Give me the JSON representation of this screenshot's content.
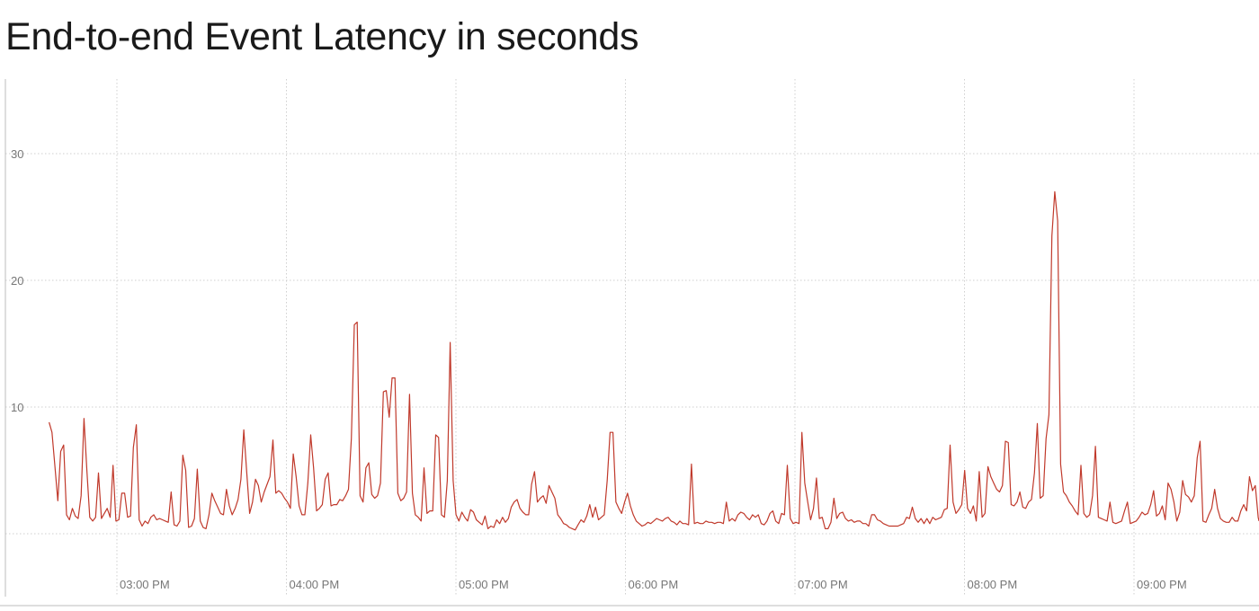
{
  "chart_data": {
    "type": "line",
    "title": "End-to-end Event Latency in seconds",
    "xlabel": "",
    "ylabel": "",
    "y_ticks": [
      10,
      20,
      30
    ],
    "x_ticks": [
      "03:00 PM",
      "04:00 PM",
      "05:00 PM",
      "06:00 PM",
      "07:00 PM",
      "08:00 PM",
      "09:00 PM"
    ],
    "ylim": [
      -5,
      36
    ],
    "x_range_hours_pm": [
      2.6,
      9.75
    ],
    "grid": true,
    "color": "#c0392b",
    "series": [
      {
        "values": [
          8.8,
          8.0,
          5.3,
          2.6,
          6.5,
          7.0,
          1.5,
          1.1,
          2.0,
          1.4,
          1.2,
          3.0,
          9.1,
          5.0,
          1.3,
          1.0,
          1.3,
          4.8,
          1.2,
          1.6,
          2.0,
          1.3,
          5.4,
          1.0,
          1.1,
          3.2,
          3.2,
          1.3,
          1.4,
          6.8,
          8.6,
          1.1,
          0.6,
          1.0,
          0.8,
          1.3,
          1.5,
          1.1,
          1.2,
          1.1,
          1.0,
          0.9,
          3.3,
          0.7,
          0.6,
          1.0,
          6.2,
          5.0,
          0.5,
          0.6,
          1.2,
          5.1,
          1.0,
          0.5,
          0.4,
          1.5,
          3.2,
          2.6,
          2.1,
          1.6,
          1.5,
          3.5,
          2.2,
          1.5,
          2.0,
          2.7,
          4.3,
          8.2,
          4.8,
          1.6,
          2.5,
          4.3,
          3.8,
          2.5,
          3.3,
          3.9,
          4.5,
          7.4,
          3.2,
          3.4,
          3.2,
          2.8,
          2.5,
          2.0,
          6.3,
          4.5,
          2.2,
          1.5,
          1.5,
          4.0,
          7.8,
          5.2,
          1.8,
          2.0,
          2.3,
          4.3,
          4.8,
          2.2,
          2.3,
          2.3,
          2.7,
          2.6,
          3.0,
          3.5,
          7.5,
          16.5,
          16.7,
          3.0,
          2.5,
          5.2,
          5.6,
          3.1,
          2.8,
          3.0,
          4.0,
          11.2,
          11.3,
          9.2,
          12.3,
          12.3,
          3.2,
          2.6,
          2.8,
          3.3,
          11.0,
          3.2,
          1.5,
          1.3,
          1.0,
          5.2,
          1.6,
          1.8,
          1.8,
          7.8,
          7.6,
          1.5,
          1.3,
          4.2,
          15.1,
          4.2,
          1.5,
          1.0,
          1.7,
          1.3,
          1.0,
          1.9,
          1.7,
          1.1,
          0.9,
          0.7,
          1.4,
          0.4,
          0.6,
          0.5,
          1.1,
          0.8,
          1.3,
          0.9,
          1.2,
          2.1,
          2.5,
          2.7,
          2.0,
          1.7,
          1.5,
          1.5,
          3.9,
          4.9,
          2.5,
          2.8,
          3.0,
          2.4,
          3.8,
          3.3,
          2.8,
          1.5,
          1.2,
          0.8,
          0.7,
          0.5,
          0.4,
          0.3,
          0.7,
          1.1,
          0.9,
          1.4,
          2.3,
          1.3,
          2.1,
          1.1,
          1.3,
          1.5,
          4.2,
          8.0,
          8.0,
          2.5,
          2.0,
          1.6,
          2.5,
          3.2,
          2.2,
          1.5,
          1.0,
          0.8,
          0.6,
          0.7,
          0.9,
          0.8,
          1.0,
          1.2,
          1.1,
          1.0,
          1.2,
          1.3,
          1.0,
          0.9,
          0.7,
          1.0,
          0.8,
          0.8,
          0.7,
          5.5,
          0.8,
          0.9,
          0.8,
          0.8,
          1.0,
          0.9,
          0.9,
          0.8,
          0.9,
          0.9,
          0.8,
          2.5,
          1.0,
          1.2,
          1.0,
          1.5,
          1.7,
          1.6,
          1.3,
          1.1,
          1.5,
          1.3,
          1.5,
          0.8,
          0.7,
          1.0,
          1.6,
          1.8,
          1.0,
          0.8,
          1.6,
          1.5,
          5.4,
          1.2,
          0.8,
          0.9,
          0.8,
          8.0,
          4.0,
          2.5,
          1.1,
          2.0,
          4.4,
          1.2,
          1.3,
          0.4,
          0.4,
          0.9,
          2.8,
          1.2,
          1.6,
          1.7,
          1.2,
          1.0,
          1.1,
          0.9,
          1.0,
          1.0,
          0.8,
          0.8,
          0.6,
          1.5,
          1.5,
          1.1,
          1.0,
          0.8,
          0.7,
          0.6,
          0.6,
          0.6,
          0.6,
          0.7,
          0.8,
          1.3,
          1.2,
          2.1,
          1.2,
          0.9,
          1.2,
          0.8,
          1.2,
          0.8,
          1.3,
          1.1,
          1.2,
          1.3,
          1.9,
          2.0,
          7.0,
          2.5,
          1.6,
          1.9,
          2.3,
          5.0,
          2.0,
          1.6,
          2.2,
          1.0,
          4.9,
          1.3,
          1.6,
          5.3,
          4.5,
          4.0,
          3.5,
          3.3,
          3.8,
          7.3,
          7.2,
          2.3,
          2.2,
          2.5,
          3.3,
          2.1,
          2.0,
          2.5,
          2.7,
          4.8,
          8.7,
          2.8,
          3.0,
          7.5,
          9.4,
          23.5,
          27.0,
          24.7,
          5.5,
          3.3,
          3.0,
          2.5,
          2.2,
          1.8,
          1.5,
          5.4,
          1.6,
          1.3,
          1.5,
          3.0,
          6.9,
          1.3,
          1.2,
          1.1,
          1.0,
          2.5,
          0.9,
          0.8,
          0.9,
          1.0,
          1.8,
          2.5,
          0.8,
          0.9,
          1.0,
          1.3,
          1.7,
          1.5,
          1.6,
          2.3,
          3.4,
          1.4,
          1.6,
          2.2,
          1.1,
          4.0,
          3.5,
          2.5,
          1.0,
          1.7,
          4.2,
          3.1,
          2.9,
          2.5,
          3.0,
          6.0,
          7.3,
          1.0,
          0.9,
          1.5,
          2.0,
          3.5,
          2.0,
          1.2,
          1.0,
          0.9,
          0.9,
          1.3,
          1.0,
          1.0,
          1.8,
          2.3,
          1.8,
          4.5,
          3.4,
          3.8,
          1.3,
          1.0
        ]
      }
    ]
  }
}
